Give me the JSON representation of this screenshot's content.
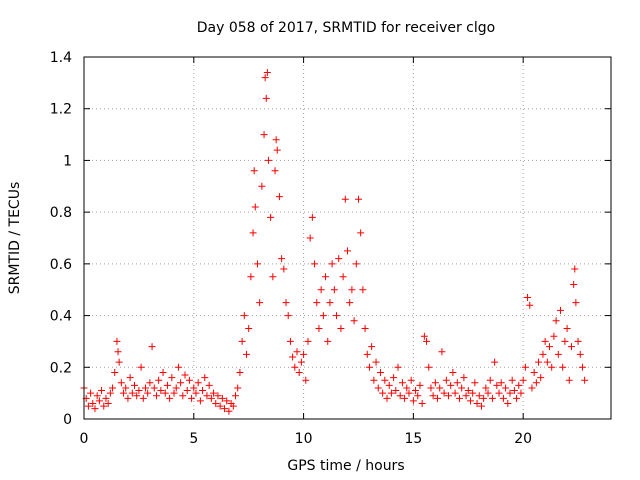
{
  "chart_data": {
    "type": "scatter",
    "title": "Day 058 of 2017, SRMTID for receiver clgo",
    "xlabel": "GPS time / hours",
    "ylabel": "SRMTID / TECUs",
    "xlim": [
      0,
      24
    ],
    "ylim": [
      0,
      1.4
    ],
    "xticks": [
      0,
      5,
      10,
      15,
      20
    ],
    "yticks": [
      0,
      0.2,
      0.4,
      0.6,
      0.8,
      1,
      1.2,
      1.4
    ],
    "xtick_labels": [
      "0",
      "5",
      "10",
      "15",
      "20"
    ],
    "ytick_labels": [
      "0",
      "0.2",
      "0.4",
      "0.6",
      "0.8",
      "1",
      "1.2",
      "1.4"
    ],
    "grid": true,
    "marker": "+",
    "color": "#ff0000",
    "series": [
      {
        "name": "SRMTID",
        "points": [
          [
            0.0,
            0.12
          ],
          [
            0.1,
            0.08
          ],
          [
            0.2,
            0.05
          ],
          [
            0.3,
            0.1
          ],
          [
            0.4,
            0.06
          ],
          [
            0.5,
            0.04
          ],
          [
            0.6,
            0.09
          ],
          [
            0.7,
            0.07
          ],
          [
            0.8,
            0.11
          ],
          [
            0.9,
            0.05
          ],
          [
            1.0,
            0.08
          ],
          [
            1.1,
            0.06
          ],
          [
            1.2,
            0.1
          ],
          [
            1.3,
            0.12
          ],
          [
            1.4,
            0.18
          ],
          [
            1.5,
            0.3
          ],
          [
            1.55,
            0.26
          ],
          [
            1.6,
            0.22
          ],
          [
            1.7,
            0.14
          ],
          [
            1.8,
            0.1
          ],
          [
            1.9,
            0.12
          ],
          [
            2.0,
            0.08
          ],
          [
            2.1,
            0.16
          ],
          [
            2.2,
            0.1
          ],
          [
            2.3,
            0.13
          ],
          [
            2.4,
            0.09
          ],
          [
            2.5,
            0.11
          ],
          [
            2.6,
            0.2
          ],
          [
            2.7,
            0.08
          ],
          [
            2.8,
            0.12
          ],
          [
            2.9,
            0.1
          ],
          [
            3.0,
            0.14
          ],
          [
            3.1,
            0.28
          ],
          [
            3.2,
            0.12
          ],
          [
            3.3,
            0.09
          ],
          [
            3.4,
            0.15
          ],
          [
            3.5,
            0.11
          ],
          [
            3.6,
            0.18
          ],
          [
            3.7,
            0.1
          ],
          [
            3.8,
            0.13
          ],
          [
            3.9,
            0.08
          ],
          [
            4.0,
            0.16
          ],
          [
            4.1,
            0.1
          ],
          [
            4.2,
            0.12
          ],
          [
            4.3,
            0.2
          ],
          [
            4.4,
            0.14
          ],
          [
            4.5,
            0.09
          ],
          [
            4.6,
            0.17
          ],
          [
            4.7,
            0.11
          ],
          [
            4.8,
            0.15
          ],
          [
            4.9,
            0.08
          ],
          [
            5.0,
            0.12
          ],
          [
            5.1,
            0.1
          ],
          [
            5.2,
            0.14
          ],
          [
            5.3,
            0.07
          ],
          [
            5.4,
            0.11
          ],
          [
            5.5,
            0.16
          ],
          [
            5.6,
            0.09
          ],
          [
            5.7,
            0.13
          ],
          [
            5.8,
            0.08
          ],
          [
            5.9,
            0.1
          ],
          [
            6.0,
            0.06
          ],
          [
            6.1,
            0.09
          ],
          [
            6.2,
            0.05
          ],
          [
            6.3,
            0.08
          ],
          [
            6.4,
            0.04
          ],
          [
            6.5,
            0.07
          ],
          [
            6.6,
            0.03
          ],
          [
            6.7,
            0.06
          ],
          [
            6.8,
            0.05
          ],
          [
            6.9,
            0.09
          ],
          [
            7.0,
            0.12
          ],
          [
            7.1,
            0.18
          ],
          [
            7.2,
            0.3
          ],
          [
            7.3,
            0.4
          ],
          [
            7.4,
            0.25
          ],
          [
            7.5,
            0.35
          ],
          [
            7.6,
            0.55
          ],
          [
            7.7,
            0.72
          ],
          [
            7.75,
            0.96
          ],
          [
            7.8,
            0.82
          ],
          [
            7.9,
            0.6
          ],
          [
            8.0,
            0.45
          ],
          [
            8.1,
            0.9
          ],
          [
            8.2,
            1.1
          ],
          [
            8.25,
            1.32
          ],
          [
            8.3,
            1.24
          ],
          [
            8.35,
            1.34
          ],
          [
            8.4,
            1.0
          ],
          [
            8.5,
            0.78
          ],
          [
            8.6,
            0.55
          ],
          [
            8.7,
            0.96
          ],
          [
            8.75,
            1.08
          ],
          [
            8.8,
            1.04
          ],
          [
            8.9,
            0.86
          ],
          [
            9.0,
            0.62
          ],
          [
            9.1,
            0.58
          ],
          [
            9.2,
            0.45
          ],
          [
            9.3,
            0.4
          ],
          [
            9.4,
            0.3
          ],
          [
            9.5,
            0.24
          ],
          [
            9.6,
            0.2
          ],
          [
            9.7,
            0.26
          ],
          [
            9.8,
            0.18
          ],
          [
            9.9,
            0.22
          ],
          [
            10.0,
            0.25
          ],
          [
            10.1,
            0.15
          ],
          [
            10.2,
            0.3
          ],
          [
            10.3,
            0.7
          ],
          [
            10.4,
            0.78
          ],
          [
            10.5,
            0.6
          ],
          [
            10.6,
            0.45
          ],
          [
            10.7,
            0.35
          ],
          [
            10.8,
            0.5
          ],
          [
            10.9,
            0.4
          ],
          [
            11.0,
            0.55
          ],
          [
            11.1,
            0.3
          ],
          [
            11.2,
            0.45
          ],
          [
            11.3,
            0.6
          ],
          [
            11.4,
            0.5
          ],
          [
            11.5,
            0.4
          ],
          [
            11.6,
            0.62
          ],
          [
            11.7,
            0.35
          ],
          [
            11.8,
            0.55
          ],
          [
            11.9,
            0.85
          ],
          [
            12.0,
            0.65
          ],
          [
            12.1,
            0.45
          ],
          [
            12.2,
            0.5
          ],
          [
            12.3,
            0.38
          ],
          [
            12.4,
            0.6
          ],
          [
            12.5,
            0.85
          ],
          [
            12.6,
            0.72
          ],
          [
            12.7,
            0.5
          ],
          [
            12.8,
            0.35
          ],
          [
            12.9,
            0.25
          ],
          [
            13.0,
            0.2
          ],
          [
            13.1,
            0.28
          ],
          [
            13.2,
            0.15
          ],
          [
            13.3,
            0.22
          ],
          [
            13.4,
            0.12
          ],
          [
            13.5,
            0.18
          ],
          [
            13.6,
            0.1
          ],
          [
            13.7,
            0.15
          ],
          [
            13.8,
            0.08
          ],
          [
            13.9,
            0.13
          ],
          [
            14.0,
            0.1
          ],
          [
            14.1,
            0.16
          ],
          [
            14.2,
            0.11
          ],
          [
            14.3,
            0.2
          ],
          [
            14.4,
            0.09
          ],
          [
            14.5,
            0.14
          ],
          [
            14.6,
            0.08
          ],
          [
            14.7,
            0.12
          ],
          [
            14.8,
            0.1
          ],
          [
            14.9,
            0.15
          ],
          [
            15.0,
            0.07
          ],
          [
            15.1,
            0.11
          ],
          [
            15.2,
            0.09
          ],
          [
            15.3,
            0.13
          ],
          [
            15.4,
            0.06
          ],
          [
            15.5,
            0.32
          ],
          [
            15.6,
            0.3
          ],
          [
            15.7,
            0.2
          ],
          [
            15.8,
            0.12
          ],
          [
            15.9,
            0.09
          ],
          [
            16.0,
            0.14
          ],
          [
            16.1,
            0.08
          ],
          [
            16.2,
            0.12
          ],
          [
            16.3,
            0.26
          ],
          [
            16.4,
            0.1
          ],
          [
            16.5,
            0.15
          ],
          [
            16.6,
            0.09
          ],
          [
            16.7,
            0.13
          ],
          [
            16.8,
            0.18
          ],
          [
            16.9,
            0.1
          ],
          [
            17.0,
            0.14
          ],
          [
            17.1,
            0.08
          ],
          [
            17.2,
            0.12
          ],
          [
            17.3,
            0.16
          ],
          [
            17.4,
            0.09
          ],
          [
            17.5,
            0.11
          ],
          [
            17.6,
            0.07
          ],
          [
            17.7,
            0.1
          ],
          [
            17.8,
            0.14
          ],
          [
            17.9,
            0.06
          ],
          [
            18.0,
            0.09
          ],
          [
            18.1,
            0.05
          ],
          [
            18.2,
            0.08
          ],
          [
            18.3,
            0.12
          ],
          [
            18.4,
            0.1
          ],
          [
            18.5,
            0.15
          ],
          [
            18.6,
            0.08
          ],
          [
            18.7,
            0.22
          ],
          [
            18.8,
            0.13
          ],
          [
            18.9,
            0.1
          ],
          [
            19.0,
            0.14
          ],
          [
            19.1,
            0.08
          ],
          [
            19.2,
            0.12
          ],
          [
            19.3,
            0.06
          ],
          [
            19.4,
            0.1
          ],
          [
            19.5,
            0.15
          ],
          [
            19.6,
            0.11
          ],
          [
            19.7,
            0.08
          ],
          [
            19.8,
            0.13
          ],
          [
            19.9,
            0.1
          ],
          [
            20.0,
            0.15
          ],
          [
            20.1,
            0.2
          ],
          [
            20.2,
            0.47
          ],
          [
            20.3,
            0.44
          ],
          [
            20.4,
            0.12
          ],
          [
            20.5,
            0.18
          ],
          [
            20.6,
            0.14
          ],
          [
            20.7,
            0.22
          ],
          [
            20.8,
            0.16
          ],
          [
            20.9,
            0.25
          ],
          [
            21.0,
            0.3
          ],
          [
            21.1,
            0.22
          ],
          [
            21.2,
            0.28
          ],
          [
            21.3,
            0.2
          ],
          [
            21.4,
            0.32
          ],
          [
            21.5,
            0.38
          ],
          [
            21.6,
            0.25
          ],
          [
            21.7,
            0.42
          ],
          [
            21.8,
            0.2
          ],
          [
            21.9,
            0.3
          ],
          [
            22.0,
            0.35
          ],
          [
            22.1,
            0.15
          ],
          [
            22.2,
            0.28
          ],
          [
            22.3,
            0.52
          ],
          [
            22.35,
            0.58
          ],
          [
            22.4,
            0.45
          ],
          [
            22.5,
            0.3
          ],
          [
            22.6,
            0.25
          ],
          [
            22.7,
            0.2
          ],
          [
            22.8,
            0.15
          ]
        ]
      }
    ]
  }
}
